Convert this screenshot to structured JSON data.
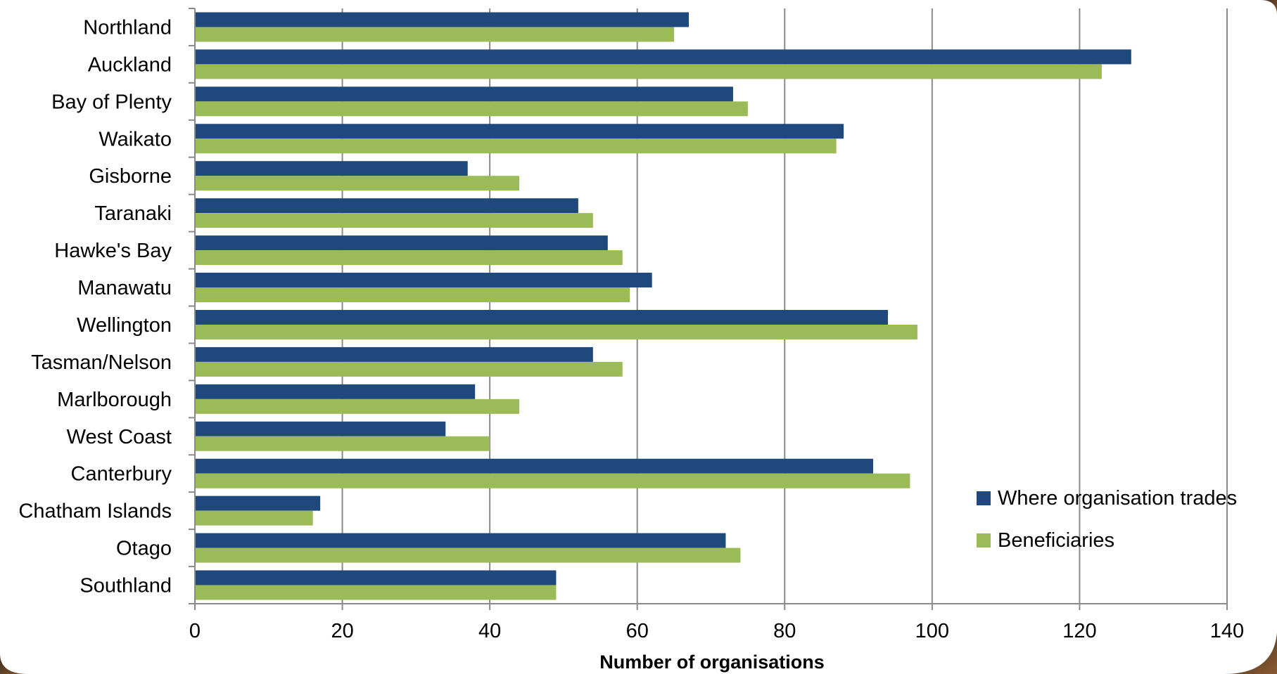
{
  "chart_data": {
    "type": "bar",
    "orientation": "horizontal",
    "categories": [
      "Northland",
      "Auckland",
      "Bay of Plenty",
      "Waikato",
      "Gisborne",
      "Taranaki",
      "Hawke's Bay",
      "Manawatu",
      "Wellington",
      "Tasman/Nelson",
      "Marlborough",
      "West Coast",
      "Canterbury",
      "Chatham Islands",
      "Otago",
      "Southland"
    ],
    "series": [
      {
        "name": "Where organisation trades",
        "color": "#1f497d",
        "values": [
          67,
          127,
          73,
          88,
          37,
          52,
          56,
          62,
          94,
          54,
          38,
          34,
          92,
          17,
          72,
          49
        ]
      },
      {
        "name": "Beneficiaries",
        "color": "#9bbb59",
        "values": [
          65,
          123,
          75,
          87,
          44,
          54,
          58,
          59,
          98,
          58,
          44,
          40,
          97,
          16,
          74,
          49
        ]
      }
    ],
    "xlabel": "Number of organisations",
    "xlim": [
      0,
      140
    ],
    "xticks": [
      0,
      20,
      40,
      60,
      80,
      100,
      120,
      140
    ],
    "grid": "vertical",
    "legend_position": "bottom-right"
  }
}
